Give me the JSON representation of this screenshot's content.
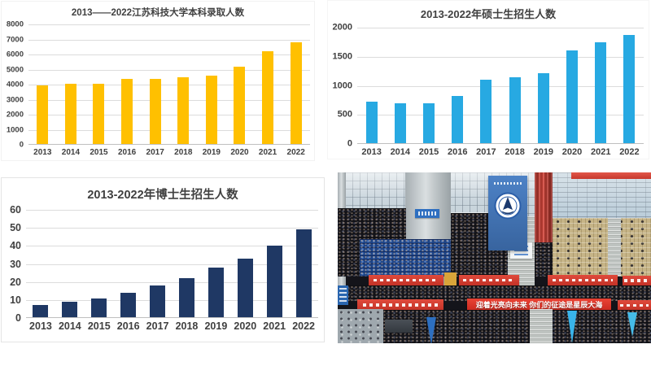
{
  "page": {
    "background": "#ffffff"
  },
  "chart_data": [
    {
      "id": "undergraduate-admissions",
      "type": "bar",
      "title": "2013——2022江苏科技大学本科录取人数",
      "categories": [
        "2013",
        "2014",
        "2015",
        "2016",
        "2017",
        "2018",
        "2019",
        "2020",
        "2021",
        "2022"
      ],
      "values": [
        3950,
        4050,
        4050,
        4400,
        4400,
        4500,
        4600,
        5200,
        6200,
        6800
      ],
      "ylim": [
        0,
        8000
      ],
      "ytick_step": 1000,
      "bar_color": "#FFC000",
      "grid": true,
      "legend": "none",
      "xlabel": "",
      "ylabel": ""
    },
    {
      "id": "masters-enrollment",
      "type": "bar",
      "title": "2013-2022年硕士生招生人数",
      "categories": [
        "2013",
        "2014",
        "2015",
        "2016",
        "2017",
        "2018",
        "2019",
        "2020",
        "2021",
        "2022"
      ],
      "values": [
        730,
        700,
        700,
        820,
        1100,
        1150,
        1220,
        1610,
        1750,
        1880
      ],
      "ylim": [
        0,
        2000
      ],
      "ytick_step": 500,
      "bar_color": "#27A9E2",
      "grid": true,
      "legend": "none",
      "xlabel": "",
      "ylabel": ""
    },
    {
      "id": "phd-enrollment",
      "type": "bar",
      "title": "2013-2022年博士生招生人数",
      "categories": [
        "2013",
        "2014",
        "2015",
        "2016",
        "2017",
        "2018",
        "2019",
        "2020",
        "2021",
        "2022"
      ],
      "values": [
        7,
        9,
        11,
        14,
        18,
        22,
        28,
        33,
        40,
        49
      ],
      "ylim": [
        0,
        60
      ],
      "ytick_step": 10,
      "bar_color": "#1F3864",
      "grid": true,
      "legend": "none",
      "xlabel": "",
      "ylabel": ""
    }
  ],
  "photo": {
    "main_banner_text": "迎着光亮向未来 你们的征途是星辰大海",
    "scene": "graduation ceremony crowd in a gymnasium grandstand"
  },
  "colors": {
    "axis_label": "#404040",
    "gridline": "#DCDCDC",
    "axis_line": "#BFBFBF",
    "banner_red": "#D93C30",
    "emblem_blue": "#2B5EA8"
  }
}
